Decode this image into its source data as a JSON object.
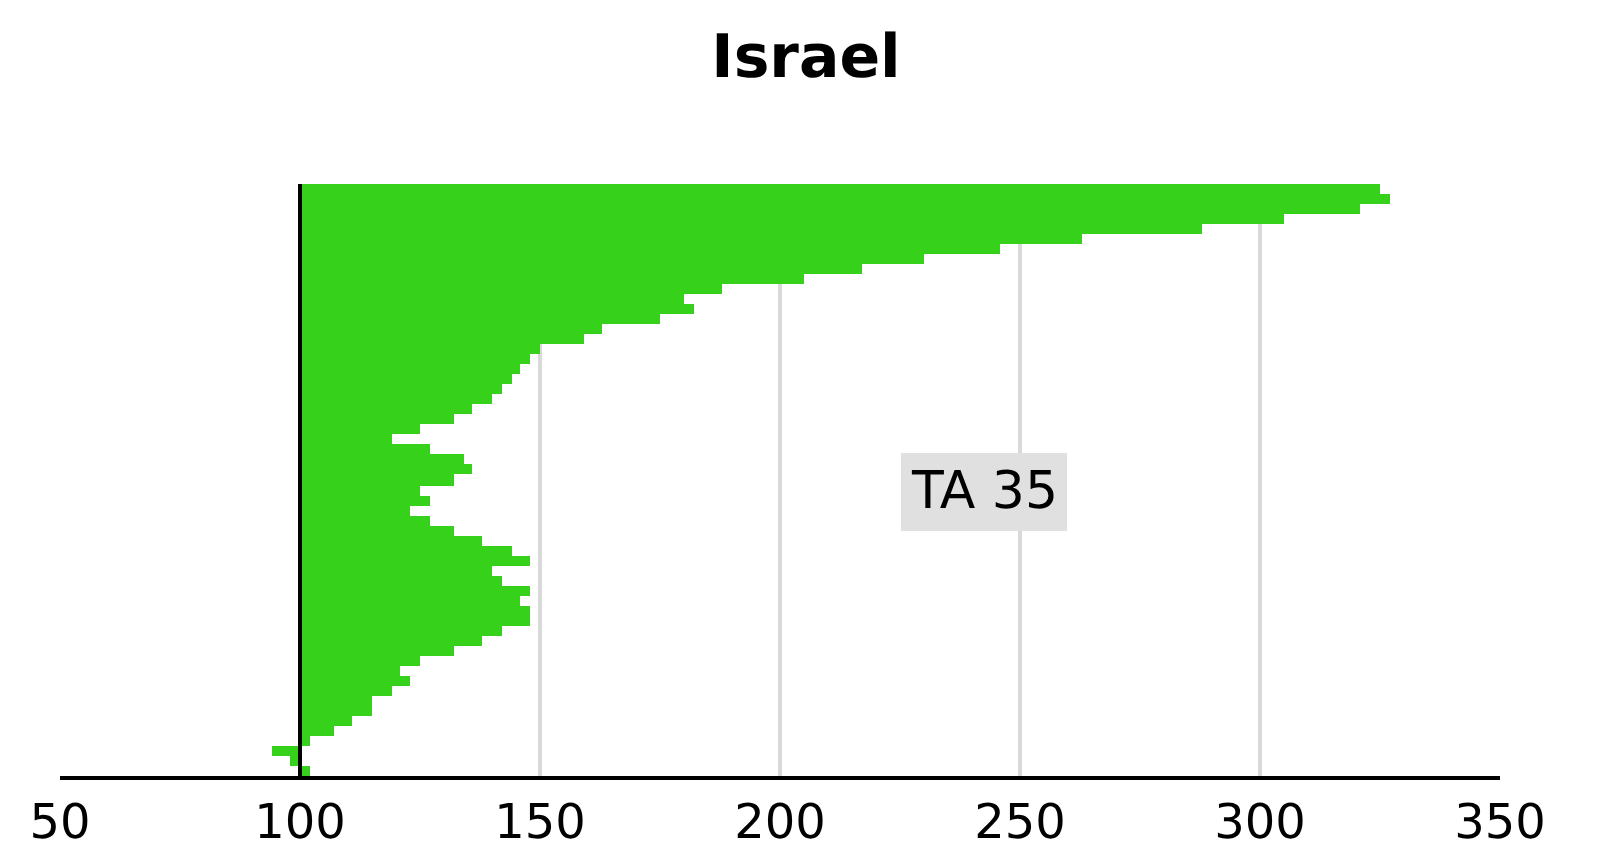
{
  "chart_data": {
    "type": "bar",
    "title": "Israel",
    "orientation": "horizontal",
    "categories": [
      null,
      null,
      null,
      null,
      null,
      null,
      null,
      null,
      null,
      null,
      null,
      null,
      null,
      null,
      null,
      null,
      null,
      null,
      null,
      null,
      null,
      null,
      null,
      null,
      null,
      null,
      null,
      null,
      null,
      null,
      null,
      null,
      null,
      null,
      null,
      null,
      null,
      null,
      null,
      null,
      null,
      null,
      null,
      null,
      null,
      null,
      null,
      null,
      null,
      null,
      null,
      null,
      null,
      null,
      null,
      null,
      null,
      null,
      null
    ],
    "base": [
      100,
      100,
      100,
      100,
      100,
      100,
      100,
      100,
      100,
      100,
      100,
      100,
      100,
      100,
      100,
      100,
      100,
      100,
      100,
      100,
      100,
      100,
      100,
      100,
      100,
      100,
      100,
      100,
      100,
      100,
      100,
      100,
      100,
      100,
      100,
      100,
      100,
      100,
      100,
      100,
      100,
      100,
      100,
      100,
      100,
      100,
      100,
      100,
      100,
      100,
      100,
      100,
      100,
      100,
      100,
      100,
      100,
      100,
      100
    ],
    "values": [
      225,
      227,
      221,
      205,
      188,
      163,
      146,
      130,
      117,
      105,
      88,
      80,
      82,
      75,
      63,
      59,
      50,
      48,
      46,
      44,
      42,
      40,
      36,
      32,
      25,
      19,
      27,
      34,
      36,
      32,
      25,
      27,
      23,
      27,
      32,
      38,
      44,
      48,
      40,
      42,
      48,
      46,
      48,
      48,
      42,
      38,
      32,
      25,
      21,
      23,
      19,
      15,
      15,
      11,
      7,
      2,
      -6,
      -2,
      2
    ],
    "color": "#36d11b",
    "xlim": [
      50,
      350
    ],
    "xticks": [
      50,
      100,
      150,
      200,
      250,
      300,
      350
    ],
    "grid": "x",
    "tick_labels": "x",
    "ref_lines": [
      {
        "axis": "x",
        "value": 100,
        "color": "#000000"
      }
    ],
    "annotations": [
      "TA 35"
    ]
  }
}
